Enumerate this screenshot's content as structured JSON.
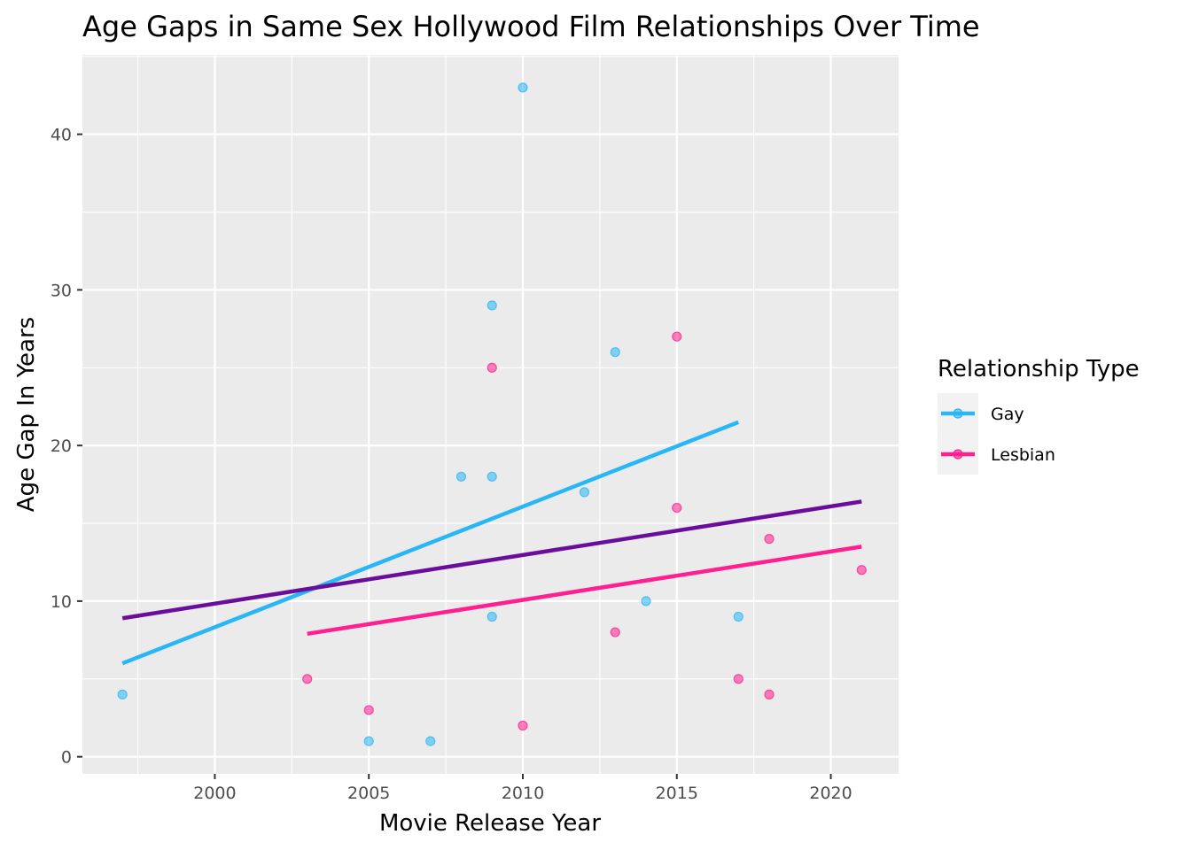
{
  "chart_data": {
    "type": "scatter",
    "title": "Age Gaps in Same Sex Hollywood Film Relationships Over Time",
    "xlabel": "Movie Release Year",
    "ylabel": "Age Gap In Years",
    "xlim": [
      1995.7,
      2022.2
    ],
    "ylim": [
      -1.1,
      45.1
    ],
    "x_ticks": [
      2000,
      2005,
      2010,
      2015,
      2020
    ],
    "y_ticks": [
      0,
      10,
      20,
      30,
      40
    ],
    "grid": true,
    "legend": {
      "title": "Relationship Type",
      "placement": "right",
      "entries": [
        "Gay",
        "Lesbian"
      ]
    },
    "series": [
      {
        "name": "Gay",
        "color": "#29B6F6",
        "points": [
          {
            "x": 1997,
            "y": 4
          },
          {
            "x": 2005,
            "y": 1
          },
          {
            "x": 2007,
            "y": 1
          },
          {
            "x": 2008,
            "y": 18
          },
          {
            "x": 2009,
            "y": 29
          },
          {
            "x": 2009,
            "y": 18
          },
          {
            "x": 2009,
            "y": 9
          },
          {
            "x": 2010,
            "y": 43
          },
          {
            "x": 2012,
            "y": 17
          },
          {
            "x": 2013,
            "y": 26
          },
          {
            "x": 2014,
            "y": 10
          },
          {
            "x": 2017,
            "y": 9
          }
        ],
        "trend": {
          "x": [
            1997,
            2017
          ],
          "y": [
            6.0,
            21.5
          ]
        }
      },
      {
        "name": "Lesbian",
        "color": "#FF1F8E",
        "points": [
          {
            "x": 2003,
            "y": 5
          },
          {
            "x": 2005,
            "y": 3
          },
          {
            "x": 2009,
            "y": 25
          },
          {
            "x": 2010,
            "y": 2
          },
          {
            "x": 2013,
            "y": 8
          },
          {
            "x": 2015,
            "y": 27
          },
          {
            "x": 2015,
            "y": 16
          },
          {
            "x": 2017,
            "y": 5
          },
          {
            "x": 2018,
            "y": 14
          },
          {
            "x": 2018,
            "y": 4
          },
          {
            "x": 2021,
            "y": 12
          }
        ],
        "trend": {
          "x": [
            2003,
            2021
          ],
          "y": [
            7.9,
            13.5
          ]
        }
      }
    ],
    "overall_trend": {
      "color": "#6A0D9B",
      "x": [
        1997,
        2021
      ],
      "y": [
        8.9,
        16.4
      ]
    }
  }
}
